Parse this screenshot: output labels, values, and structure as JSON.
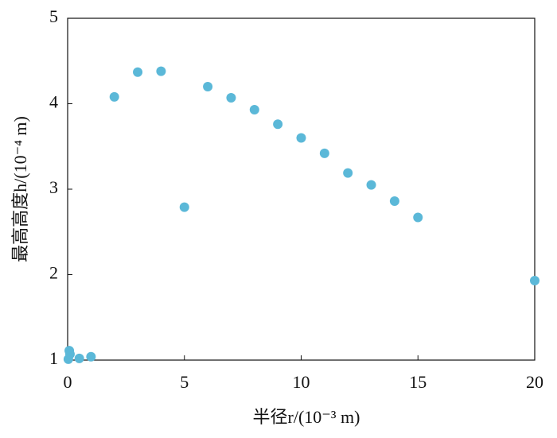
{
  "chart_data": {
    "type": "scatter",
    "xlabel": "半径r/(10⁻³ m)",
    "ylabel": "最高高度h/(10⁻⁴ m)",
    "x": [
      0.03,
      0.07,
      0.1,
      0.5,
      1,
      2,
      3,
      4,
      5,
      6,
      7,
      8,
      9,
      10,
      11,
      12,
      13,
      14,
      15,
      20
    ],
    "values": [
      1.01,
      1.11,
      1.07,
      1.02,
      1.04,
      4.08,
      4.37,
      4.38,
      2.79,
      4.2,
      4.07,
      3.93,
      3.76,
      3.6,
      3.42,
      3.19,
      3.05,
      2.86,
      2.67,
      1.93
    ],
    "color": "#5bb8d8",
    "xlim": [
      0,
      20
    ],
    "xticks": [
      0,
      5,
      10,
      15,
      20
    ],
    "ylim": [
      1,
      5
    ],
    "yticks": [
      1,
      2,
      3,
      4,
      5
    ]
  }
}
